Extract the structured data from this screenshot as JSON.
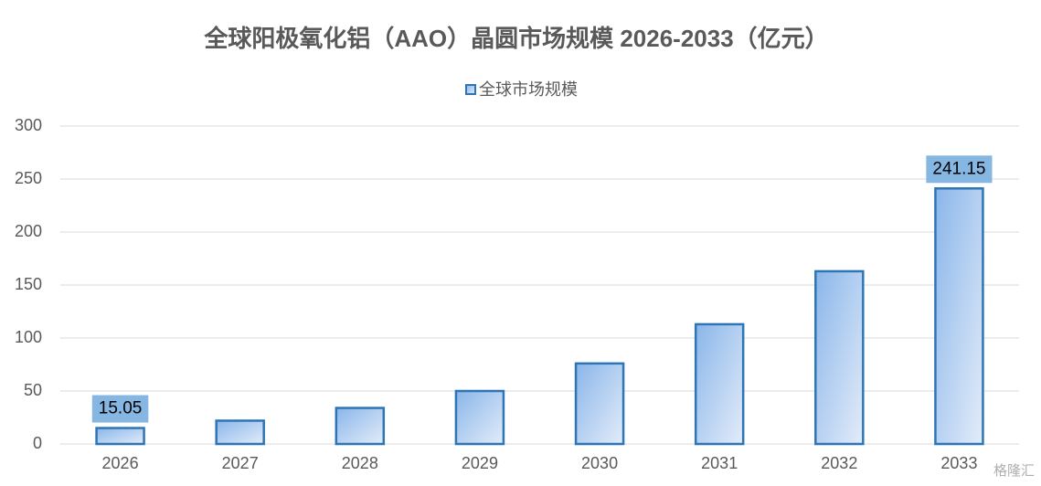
{
  "chart_data": {
    "type": "bar",
    "title": "全球阳极氧化铝（AAO）晶圆市场规模 2026-2033（亿元）",
    "categories": [
      "2026",
      "2027",
      "2028",
      "2029",
      "2030",
      "2031",
      "2032",
      "2033"
    ],
    "series": [
      {
        "name": "全球市场规模",
        "color": "#2e75b6",
        "values": [
          15.05,
          22,
          34,
          50,
          76,
          113,
          163,
          241.15
        ],
        "value_labels": [
          "15.05",
          null,
          null,
          null,
          null,
          null,
          null,
          "241.15"
        ]
      }
    ],
    "ylim": [
      0,
      300
    ],
    "yticks": [
      0,
      50,
      100,
      150,
      200,
      250,
      300
    ],
    "grid": true,
    "legend": "top",
    "watermark": "格隆汇"
  }
}
